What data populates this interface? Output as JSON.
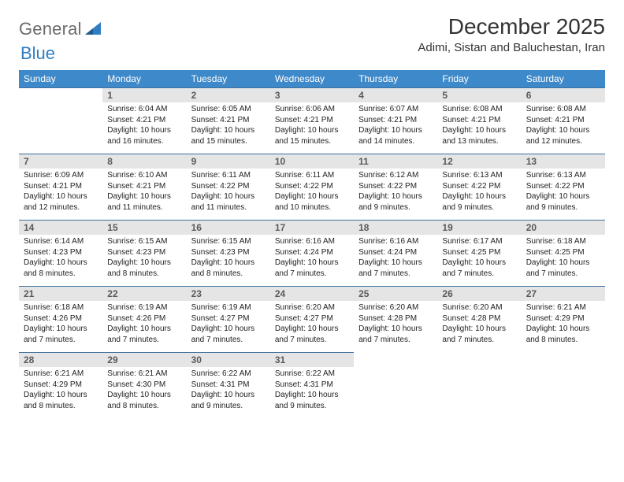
{
  "header": {
    "logo_text_1": "General",
    "logo_text_2": "Blue",
    "month_title": "December 2025",
    "location": "Adimi, Sistan and Baluchestan, Iran"
  },
  "calendar": {
    "header_bg": "#3e89c9",
    "header_fg": "#ffffff",
    "daynum_bg": "#e5e5e5",
    "daynum_border": "#3e6f9e",
    "columns": [
      "Sunday",
      "Monday",
      "Tuesday",
      "Wednesday",
      "Thursday",
      "Friday",
      "Saturday"
    ],
    "weeks": [
      [
        null,
        {
          "n": "1",
          "sr": "Sunrise: 6:04 AM",
          "ss": "Sunset: 4:21 PM",
          "dl": "Daylight: 10 hours and 16 minutes."
        },
        {
          "n": "2",
          "sr": "Sunrise: 6:05 AM",
          "ss": "Sunset: 4:21 PM",
          "dl": "Daylight: 10 hours and 15 minutes."
        },
        {
          "n": "3",
          "sr": "Sunrise: 6:06 AM",
          "ss": "Sunset: 4:21 PM",
          "dl": "Daylight: 10 hours and 15 minutes."
        },
        {
          "n": "4",
          "sr": "Sunrise: 6:07 AM",
          "ss": "Sunset: 4:21 PM",
          "dl": "Daylight: 10 hours and 14 minutes."
        },
        {
          "n": "5",
          "sr": "Sunrise: 6:08 AM",
          "ss": "Sunset: 4:21 PM",
          "dl": "Daylight: 10 hours and 13 minutes."
        },
        {
          "n": "6",
          "sr": "Sunrise: 6:08 AM",
          "ss": "Sunset: 4:21 PM",
          "dl": "Daylight: 10 hours and 12 minutes."
        }
      ],
      [
        {
          "n": "7",
          "sr": "Sunrise: 6:09 AM",
          "ss": "Sunset: 4:21 PM",
          "dl": "Daylight: 10 hours and 12 minutes."
        },
        {
          "n": "8",
          "sr": "Sunrise: 6:10 AM",
          "ss": "Sunset: 4:21 PM",
          "dl": "Daylight: 10 hours and 11 minutes."
        },
        {
          "n": "9",
          "sr": "Sunrise: 6:11 AM",
          "ss": "Sunset: 4:22 PM",
          "dl": "Daylight: 10 hours and 11 minutes."
        },
        {
          "n": "10",
          "sr": "Sunrise: 6:11 AM",
          "ss": "Sunset: 4:22 PM",
          "dl": "Daylight: 10 hours and 10 minutes."
        },
        {
          "n": "11",
          "sr": "Sunrise: 6:12 AM",
          "ss": "Sunset: 4:22 PM",
          "dl": "Daylight: 10 hours and 9 minutes."
        },
        {
          "n": "12",
          "sr": "Sunrise: 6:13 AM",
          "ss": "Sunset: 4:22 PM",
          "dl": "Daylight: 10 hours and 9 minutes."
        },
        {
          "n": "13",
          "sr": "Sunrise: 6:13 AM",
          "ss": "Sunset: 4:22 PM",
          "dl": "Daylight: 10 hours and 9 minutes."
        }
      ],
      [
        {
          "n": "14",
          "sr": "Sunrise: 6:14 AM",
          "ss": "Sunset: 4:23 PM",
          "dl": "Daylight: 10 hours and 8 minutes."
        },
        {
          "n": "15",
          "sr": "Sunrise: 6:15 AM",
          "ss": "Sunset: 4:23 PM",
          "dl": "Daylight: 10 hours and 8 minutes."
        },
        {
          "n": "16",
          "sr": "Sunrise: 6:15 AM",
          "ss": "Sunset: 4:23 PM",
          "dl": "Daylight: 10 hours and 8 minutes."
        },
        {
          "n": "17",
          "sr": "Sunrise: 6:16 AM",
          "ss": "Sunset: 4:24 PM",
          "dl": "Daylight: 10 hours and 7 minutes."
        },
        {
          "n": "18",
          "sr": "Sunrise: 6:16 AM",
          "ss": "Sunset: 4:24 PM",
          "dl": "Daylight: 10 hours and 7 minutes."
        },
        {
          "n": "19",
          "sr": "Sunrise: 6:17 AM",
          "ss": "Sunset: 4:25 PM",
          "dl": "Daylight: 10 hours and 7 minutes."
        },
        {
          "n": "20",
          "sr": "Sunrise: 6:18 AM",
          "ss": "Sunset: 4:25 PM",
          "dl": "Daylight: 10 hours and 7 minutes."
        }
      ],
      [
        {
          "n": "21",
          "sr": "Sunrise: 6:18 AM",
          "ss": "Sunset: 4:26 PM",
          "dl": "Daylight: 10 hours and 7 minutes."
        },
        {
          "n": "22",
          "sr": "Sunrise: 6:19 AM",
          "ss": "Sunset: 4:26 PM",
          "dl": "Daylight: 10 hours and 7 minutes."
        },
        {
          "n": "23",
          "sr": "Sunrise: 6:19 AM",
          "ss": "Sunset: 4:27 PM",
          "dl": "Daylight: 10 hours and 7 minutes."
        },
        {
          "n": "24",
          "sr": "Sunrise: 6:20 AM",
          "ss": "Sunset: 4:27 PM",
          "dl": "Daylight: 10 hours and 7 minutes."
        },
        {
          "n": "25",
          "sr": "Sunrise: 6:20 AM",
          "ss": "Sunset: 4:28 PM",
          "dl": "Daylight: 10 hours and 7 minutes."
        },
        {
          "n": "26",
          "sr": "Sunrise: 6:20 AM",
          "ss": "Sunset: 4:28 PM",
          "dl": "Daylight: 10 hours and 7 minutes."
        },
        {
          "n": "27",
          "sr": "Sunrise: 6:21 AM",
          "ss": "Sunset: 4:29 PM",
          "dl": "Daylight: 10 hours and 8 minutes."
        }
      ],
      [
        {
          "n": "28",
          "sr": "Sunrise: 6:21 AM",
          "ss": "Sunset: 4:29 PM",
          "dl": "Daylight: 10 hours and 8 minutes."
        },
        {
          "n": "29",
          "sr": "Sunrise: 6:21 AM",
          "ss": "Sunset: 4:30 PM",
          "dl": "Daylight: 10 hours and 8 minutes."
        },
        {
          "n": "30",
          "sr": "Sunrise: 6:22 AM",
          "ss": "Sunset: 4:31 PM",
          "dl": "Daylight: 10 hours and 9 minutes."
        },
        {
          "n": "31",
          "sr": "Sunrise: 6:22 AM",
          "ss": "Sunset: 4:31 PM",
          "dl": "Daylight: 10 hours and 9 minutes."
        },
        null,
        null,
        null
      ]
    ]
  }
}
